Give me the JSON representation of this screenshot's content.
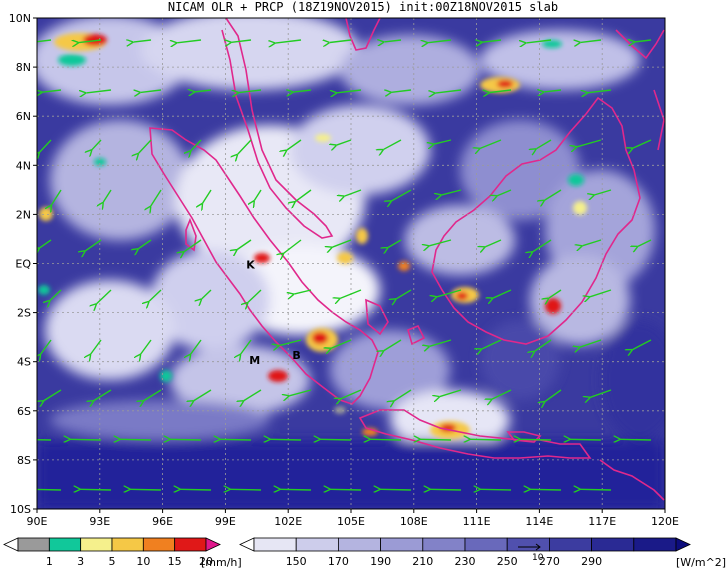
{
  "title": "NICAM OLR + PRCP (18Z19NOV2015) init:00Z18NOV2015 slab",
  "map": {
    "lon_range": [
      90,
      120
    ],
    "lat_range": [
      -10,
      10
    ],
    "lon_ticks": [
      "90E",
      "93E",
      "96E",
      "99E",
      "102E",
      "105E",
      "108E",
      "111E",
      "114E",
      "117E",
      "120E"
    ],
    "lat_ticks": [
      "10N",
      "8N",
      "6N",
      "4N",
      "2N",
      "EQ",
      "2S",
      "4S",
      "6S",
      "8S",
      "10S"
    ],
    "grid": true,
    "background_color": "#3a3aa0",
    "coastline_color": "#e0288c",
    "wind_vector_color": "#22cc22",
    "place_labels": [
      {
        "text": "K",
        "lon": 100.2,
        "lat": -0.2
      },
      {
        "text": "M",
        "lon": 100.4,
        "lat": -4.1
      },
      {
        "text": "B",
        "lon": 102.4,
        "lat": -3.9
      }
    ]
  },
  "precip_colorbar": {
    "unit": "[mm/h]",
    "labels": [
      "1",
      "3",
      "5",
      "10",
      "15",
      "20"
    ],
    "colors": [
      "#ffffff",
      "#9a9a9a",
      "#11c89a",
      "#f5f08c",
      "#f5c846",
      "#f08020",
      "#e01818",
      "#e0188c"
    ]
  },
  "olr_colorbar": {
    "unit": "[W/m^2]",
    "labels": [
      "150",
      "170",
      "190",
      "210",
      "230",
      "250",
      "270",
      "290"
    ],
    "colors": [
      "#ffffff",
      "#e6e6f4",
      "#cdcdeb",
      "#b4b4e0",
      "#9b9bd5",
      "#8282c8",
      "#6969bb",
      "#5050ae",
      "#3c3ca0",
      "#2a2a94",
      "#1a1a88",
      "#0c0c7c"
    ],
    "vector_ref": "10"
  }
}
